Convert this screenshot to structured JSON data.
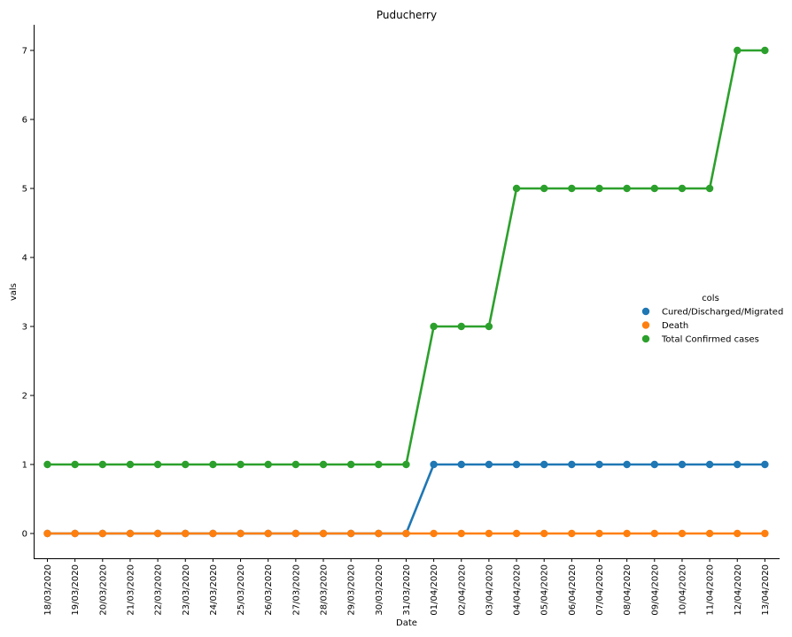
{
  "chart_data": {
    "type": "line",
    "title": "Puducherry",
    "xlabel": "Date",
    "ylabel": "vals",
    "ylim": [
      -0.35,
      7.35
    ],
    "yticks": [
      0,
      1,
      2,
      3,
      4,
      5,
      6,
      7
    ],
    "categories": [
      "18/03/2020",
      "19/03/2020",
      "20/03/2020",
      "21/03/2020",
      "22/03/2020",
      "23/03/2020",
      "24/03/2020",
      "25/03/2020",
      "26/03/2020",
      "27/03/2020",
      "28/03/2020",
      "29/03/2020",
      "30/03/2020",
      "31/03/2020",
      "01/04/2020",
      "02/04/2020",
      "03/04/2020",
      "04/04/2020",
      "05/04/2020",
      "06/04/2020",
      "07/04/2020",
      "08/04/2020",
      "09/04/2020",
      "10/04/2020",
      "11/04/2020",
      "12/04/2020",
      "13/04/2020"
    ],
    "legend_title": "cols",
    "legend_position": "right",
    "series": [
      {
        "name": "Cured/Discharged/Migrated",
        "color": "#1f77b4",
        "values": [
          0,
          0,
          0,
          0,
          0,
          0,
          0,
          0,
          0,
          0,
          0,
          0,
          0,
          0,
          1,
          1,
          1,
          1,
          1,
          1,
          1,
          1,
          1,
          1,
          1,
          1,
          1
        ]
      },
      {
        "name": "Death",
        "color": "#ff7f0e",
        "values": [
          0,
          0,
          0,
          0,
          0,
          0,
          0,
          0,
          0,
          0,
          0,
          0,
          0,
          0,
          0,
          0,
          0,
          0,
          0,
          0,
          0,
          0,
          0,
          0,
          0,
          0,
          0
        ]
      },
      {
        "name": "Total Confirmed cases",
        "color": "#2ca02c",
        "values": [
          1,
          1,
          1,
          1,
          1,
          1,
          1,
          1,
          1,
          1,
          1,
          1,
          1,
          1,
          3,
          3,
          3,
          5,
          5,
          5,
          5,
          5,
          5,
          5,
          5,
          7,
          7
        ]
      }
    ]
  }
}
